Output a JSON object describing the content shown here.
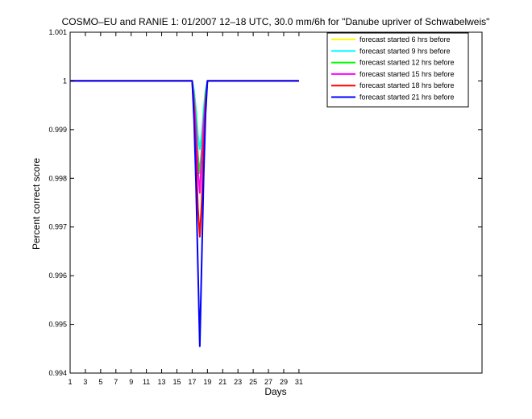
{
  "chart_data": {
    "type": "line",
    "title": "COSMO–EU and RANIE 1: 01/2007 12–18 UTC, 30.0 mm/6h for \"Danube upriver of Schwabelweis\"",
    "xlabel": "Days",
    "ylabel": "Percent correct score",
    "xlim": [
      1,
      55
    ],
    "ylim": [
      0.994,
      1.001
    ],
    "x_ticks": [
      1,
      3,
      5,
      7,
      9,
      11,
      13,
      15,
      17,
      19,
      21,
      23,
      25,
      27,
      29,
      31
    ],
    "y_ticks": [
      0.994,
      0.995,
      0.996,
      0.997,
      0.998,
      0.999,
      1,
      1.001
    ],
    "y_tick_labels": [
      "0.994",
      "0.995",
      "0.996",
      "0.997",
      "0.998",
      "0.999",
      "1",
      "1.001"
    ],
    "grid": false,
    "legend_position": "top-right",
    "x": [
      1,
      17,
      17.25,
      17.5,
      17.75,
      18,
      18.25,
      18.5,
      18.75,
      19,
      31
    ],
    "series": [
      {
        "name": "forecast started 6 hrs before",
        "color": "#ffff00",
        "values": [
          1,
          1,
          0.9998,
          0.9994,
          0.9989,
          0.9986,
          0.9989,
          0.9994,
          0.9998,
          1,
          1
        ]
      },
      {
        "name": "forecast started 9 hrs before",
        "color": "#00ffff",
        "values": [
          1,
          1,
          0.9998,
          0.9994,
          0.9989,
          0.9986,
          0.9989,
          0.9994,
          0.9998,
          1,
          1
        ]
      },
      {
        "name": "forecast started 12 hrs before",
        "color": "#00ff00",
        "values": [
          1,
          1,
          0.9997,
          0.9992,
          0.9985,
          0.9981,
          0.9986,
          0.9992,
          0.9997,
          1,
          1
        ]
      },
      {
        "name": "forecast started 15 hrs before",
        "color": "#ff00ff",
        "values": [
          1,
          1,
          0.9996,
          0.999,
          0.9982,
          0.9977,
          0.9984,
          0.9991,
          0.9996,
          1,
          1
        ]
      },
      {
        "name": "forecast started 18 hrs before",
        "color": "#ff0000",
        "values": [
          1,
          1,
          0.9994,
          0.9985,
          0.9974,
          0.9968,
          0.9975,
          0.9986,
          0.9995,
          1,
          1
        ]
      },
      {
        "name": "forecast started 21 hrs before",
        "color": "#0000ff",
        "values": [
          1,
          1,
          0.9992,
          0.9979,
          0.9962,
          0.99455,
          0.9963,
          0.998,
          0.9993,
          1,
          1
        ]
      }
    ]
  }
}
